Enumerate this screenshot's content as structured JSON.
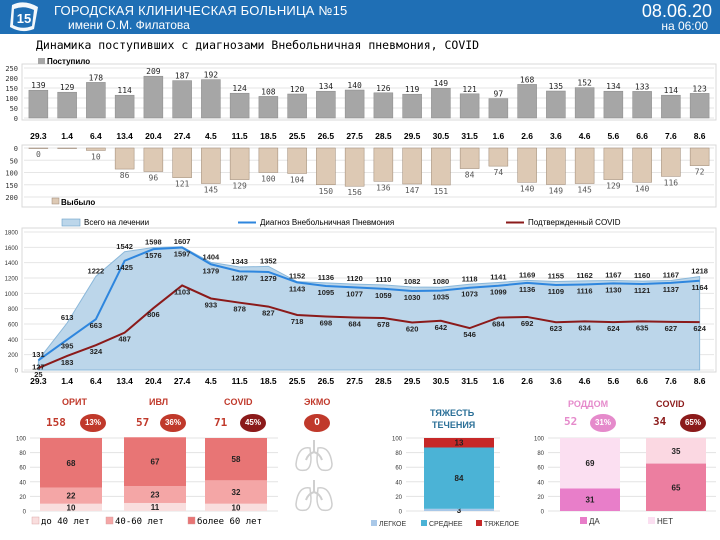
{
  "header": {
    "title": "ГОРОДСКАЯ КЛИНИЧЕСКАЯ БОЛЬНИЦА №15",
    "subtitle": "имени О.М. Филатова",
    "date": "08.06.20",
    "time": "на 06:00",
    "logo_text": "15",
    "colors": {
      "bar": "#1f6fb5"
    }
  },
  "chart_title": "Динамика поступивших с диагнозами Внебольничная пневмония, COVID",
  "chart_data": [
    {
      "type": "bar",
      "name": "admitted",
      "categories": [
        "29.3",
        "1.4",
        "6.4",
        "13.4",
        "20.4",
        "27.4",
        "4.5",
        "11.5",
        "18.5",
        "25.5",
        "26.5",
        "27.5",
        "28.5",
        "29.5",
        "30.5",
        "31.5",
        "1.6",
        "2.6",
        "3.6",
        "4.6",
        "5.6",
        "6.6",
        "7.6",
        "8.6"
      ],
      "series": [
        {
          "name": "Поступило",
          "values": [
            139,
            129,
            178,
            114,
            209,
            187,
            192,
            124,
            108,
            120,
            134,
            140,
            126,
            119,
            149,
            121,
            97,
            168,
            135,
            152,
            134,
            133,
            114,
            123
          ]
        }
      ],
      "ylim": [
        0,
        250
      ],
      "yticks": [
        "250",
        "200",
        "150",
        "100",
        "50",
        "0"
      ],
      "color": "#a6a6a6",
      "legend": "top-left"
    },
    {
      "type": "bar",
      "name": "discharged",
      "categories": [
        "29.3",
        "1.4",
        "6.4",
        "13.4",
        "20.4",
        "27.4",
        "4.5",
        "11.5",
        "18.5",
        "25.5",
        "26.5",
        "27.5",
        "28.5",
        "29.5",
        "30.5",
        "31.5",
        "1.6",
        "2.6",
        "3.6",
        "4.6",
        "5.6",
        "6.6",
        "7.6",
        "8.6"
      ],
      "series": [
        {
          "name": "Выбыло",
          "values": [
            0,
            2,
            10,
            86,
            96,
            121,
            145,
            129,
            100,
            104,
            150,
            156,
            136,
            147,
            151,
            84,
            74,
            140,
            149,
            145,
            129,
            140,
            116,
            72
          ]
        }
      ],
      "data_labels": [
        "0",
        "",
        "10",
        "86",
        "96",
        "121",
        "145",
        "129",
        "100",
        "104",
        "150",
        "156",
        "136",
        "147",
        "151",
        "84",
        "74",
        "140",
        "149",
        "145",
        "129",
        "140",
        "116",
        "72"
      ],
      "ylim": [
        0,
        200
      ],
      "yticks": [
        "0",
        "50",
        "100",
        "150",
        "200"
      ],
      "color": "#ddc9b4",
      "legend": "bottom-left"
    },
    {
      "type": "line",
      "name": "treatment",
      "x": [
        "29.3",
        "1.4",
        "6.4",
        "13.4",
        "20.4",
        "27.4",
        "4.5",
        "11.5",
        "18.5",
        "25.5",
        "26.5",
        "27.5",
        "28.5",
        "29.5",
        "30.5",
        "31.5",
        "1.6",
        "2.6",
        "3.6",
        "4.6",
        "5.6",
        "6.6",
        "7.6",
        "8.6"
      ],
      "series": [
        {
          "name": "Всего на лечении",
          "kind": "area",
          "color": "#bcd6ea",
          "values": [
            131,
            613,
            1222,
            1542,
            1598,
            1607,
            1404,
            1343,
            1352,
            1152,
            1136,
            1120,
            1110,
            1082,
            1080,
            1118,
            1141,
            1169,
            1155,
            1162,
            1167,
            1160,
            1167,
            1218
          ]
        },
        {
          "name": "Диагноз Внебольничная Пневмония",
          "kind": "line",
          "color": "#2e86de",
          "values": [
            127,
            395,
            663,
            1425,
            1576,
            1597,
            1379,
            1287,
            1279,
            1143,
            1095,
            1077,
            1059,
            1030,
            1035,
            1073,
            1099,
            1136,
            1109,
            1116,
            1130,
            1121,
            1137,
            1164
          ]
        },
        {
          "name": "Подтвержденный COVID",
          "kind": "line",
          "color": "#8b1a1a",
          "values": [
            25,
            183,
            324,
            487,
            806,
            1103,
            933,
            878,
            827,
            718,
            698,
            684,
            678,
            620,
            642,
            546,
            684,
            692,
            623,
            634,
            624,
            635,
            627,
            624
          ]
        }
      ],
      "ylim": [
        0,
        1800
      ],
      "yticks": [
        "1800",
        "1600",
        "1400",
        "1200",
        "1000",
        "800",
        "600",
        "400",
        "200",
        "0"
      ],
      "legend": "top"
    },
    {
      "type": "bar",
      "name": "age_structure",
      "categories": [
        "ОРИТ",
        "ИВЛ",
        "COVID"
      ],
      "series": [
        {
          "name": "до 40 лет",
          "color": "#f9dede",
          "values": [
            10,
            11,
            10
          ]
        },
        {
          "name": "40-60 лет",
          "color": "#f4a6a6",
          "values": [
            22,
            23,
            32
          ]
        },
        {
          "name": "более 60 лет",
          "color": "#e87575",
          "values": [
            68,
            67,
            58
          ]
        }
      ],
      "ylim": [
        0,
        100
      ],
      "yticks": [
        "100",
        "80",
        "60",
        "40",
        "20",
        "0"
      ],
      "legend": "bottom"
    },
    {
      "type": "bar",
      "name": "severity",
      "categories": [
        "ТЯЖЕСТЬ ТЕЧЕНИЯ"
      ],
      "series": [
        {
          "name": "ЛЕГКОЕ",
          "color": "#a9c8e8",
          "values": [
            3
          ]
        },
        {
          "name": "СРЕДНЕЕ",
          "color": "#4bb3d6",
          "values": [
            84
          ]
        },
        {
          "name": "ТЯЖЕЛОЕ",
          "color": "#c62828",
          "values": [
            13
          ]
        }
      ],
      "ylim": [
        0,
        100
      ],
      "yticks": [
        "100",
        "80",
        "60",
        "40",
        "20",
        "0"
      ],
      "legend": "bottom"
    },
    {
      "type": "bar",
      "name": "maternity_covid",
      "categories": [
        "РОДДОМ",
        "COVID"
      ],
      "series": [
        {
          "name": "ДА",
          "values": [
            31,
            65
          ]
        },
        {
          "name": "НЕТ",
          "values": [
            69,
            35
          ]
        }
      ],
      "colors": {
        "РОДДОМ": [
          "#e87ec9",
          "#fbdff1"
        ],
        "COVID": [
          "#ec7ea0",
          "#fbd8e2"
        ]
      },
      "ylim": [
        0,
        100
      ],
      "yticks": [
        "100",
        "80",
        "60",
        "40",
        "20",
        "0"
      ],
      "legend": "bottom"
    }
  ],
  "stats": {
    "orit": {
      "label": "ОРИТ",
      "count": "158",
      "pct": "13%",
      "badge_color": "#c0392b"
    },
    "ivl": {
      "label": "ИВЛ",
      "count": "57",
      "pct": "36%",
      "badge_color": "#c0392b"
    },
    "covid": {
      "label": "COVID",
      "count": "71",
      "pct": "45%",
      "badge_color": "#8b1a1a"
    },
    "ecmo": {
      "label": "ЭКМО",
      "count": "",
      "pct": "0",
      "badge_color": "#c0392b"
    },
    "severity_title_1": "ТЯЖЕСТЬ",
    "severity_title_2": "ТЕЧЕНИЯ",
    "maternity": {
      "label": "РОДДОМ",
      "count": "52",
      "pct": "31%",
      "badge_color": "#e58acb"
    },
    "covid2": {
      "label": "COVID",
      "count": "34",
      "pct": "65%",
      "badge_color": "#8b1a1a"
    }
  }
}
